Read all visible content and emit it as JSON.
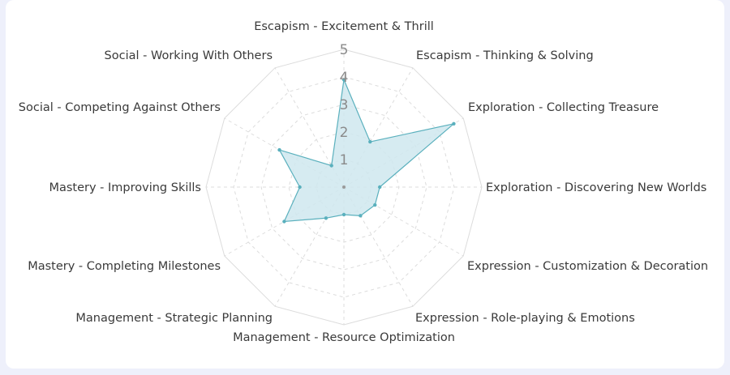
{
  "chart_data": {
    "type": "radar",
    "title": "",
    "categories": [
      "Escapism - Excitement & Thrill",
      "Escapism - Thinking & Solving",
      "Exploration - Collecting Treasure",
      "Exploration - Discovering New Worlds",
      "Expression - Customization & Decoration",
      "Expression - Role-playing & Emotions",
      "Management - Resource Optimization",
      "Management - Strategic Planning",
      "Mastery - Completing Milestones",
      "Mastery - Improving Skills",
      "Social - Competing Against Others",
      "Social - Working With Others"
    ],
    "series": [
      {
        "values": [
          3.9,
          1.9,
          4.6,
          1.3,
          1.3,
          1.2,
          1.0,
          1.3,
          2.5,
          1.6,
          2.7,
          0.9
        ]
      }
    ],
    "rlim": [
      0,
      5
    ],
    "ticks": [
      "1",
      "2",
      "3",
      "4",
      "5"
    ],
    "grid": true,
    "colors": {
      "line": "#5ab0bd",
      "fill": "#cfe8ee",
      "grid": "#dcdcdc"
    }
  }
}
